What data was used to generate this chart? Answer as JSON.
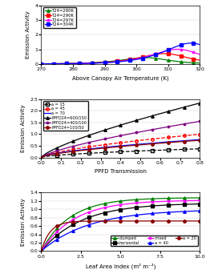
{
  "panel1": {
    "xlabel": "Above Canopy Air Temperature (K)",
    "ylabel": "Emission Activity",
    "xlim": [
      270,
      320
    ],
    "ylim": [
      0,
      4
    ],
    "yticks": [
      0,
      1,
      2,
      3,
      4
    ],
    "xticks": [
      270,
      280,
      290,
      300,
      310,
      320
    ],
    "series": [
      {
        "label": "T24=280K",
        "color": "green",
        "marker": "^",
        "T24": 280
      },
      {
        "label": "T24=290K",
        "color": "red",
        "marker": "s",
        "T24": 290
      },
      {
        "label": "T24=297K",
        "color": "magenta",
        "marker": "*",
        "T24": 297
      },
      {
        "label": "T24=304K",
        "color": "blue",
        "marker": "s",
        "T24": 304
      }
    ]
  },
  "panel2": {
    "xlabel": "PPFD Transmission",
    "ylabel": "Emission Activity",
    "xlim": [
      0,
      0.8
    ],
    "ylim": [
      0,
      2.5
    ],
    "yticks": [
      0,
      0.5,
      1.0,
      1.5,
      2.0,
      2.5
    ],
    "xticks": [
      0,
      0.1,
      0.2,
      0.3,
      0.4,
      0.5,
      0.6,
      0.7,
      0.8
    ],
    "series": [
      {
        "label": "a = 15",
        "color": "black",
        "marker": "s",
        "linestyle": "--",
        "filled": false
      },
      {
        "label": "a = 45",
        "color": "red",
        "marker": "o",
        "linestyle": "--",
        "filled": false
      },
      {
        "label": "a = 70",
        "color": "blue",
        "marker": null,
        "linestyle": "-",
        "filled": true
      },
      {
        "label": "PPFD24=600/150",
        "color": "black",
        "marker": "^",
        "linestyle": "-",
        "filled": true
      },
      {
        "label": "PPFD24=400/100",
        "color": "purple",
        "marker": "*",
        "linestyle": "-",
        "filled": true
      },
      {
        "label": "PPFD24=100/50",
        "color": "darkred",
        "marker": "o",
        "linestyle": "-",
        "filled": true
      }
    ]
  },
  "panel3": {
    "xlabel": "Leaf Area Index (m² m⁻²)",
    "ylabel": "Emission Activity",
    "xlim": [
      0,
      10
    ],
    "ylim": [
      0,
      1.4
    ],
    "yticks": [
      0.0,
      0.2,
      0.4,
      0.6,
      0.8,
      1.0,
      1.2,
      1.4
    ],
    "xticks": [
      0,
      2.5,
      5.0,
      7.5,
      10
    ],
    "series": [
      {
        "label": "clumped",
        "color": "green",
        "marker": "^",
        "A": 1.28,
        "k": 0.55
      },
      {
        "label": "horizontal",
        "color": "black",
        "marker": "s",
        "A": 1.15,
        "k": 0.4
      },
      {
        "label": "mixed",
        "color": "magenta",
        "marker": "*",
        "A": 1.22,
        "k": 0.48
      },
      {
        "label": "a = 40",
        "color": "blue",
        "marker": "^",
        "A": 1.0,
        "k": 0.33
      },
      {
        "label": "a = 20",
        "color": "darkred",
        "marker": "o",
        "A": 0.72,
        "k": 1.8
      }
    ]
  }
}
